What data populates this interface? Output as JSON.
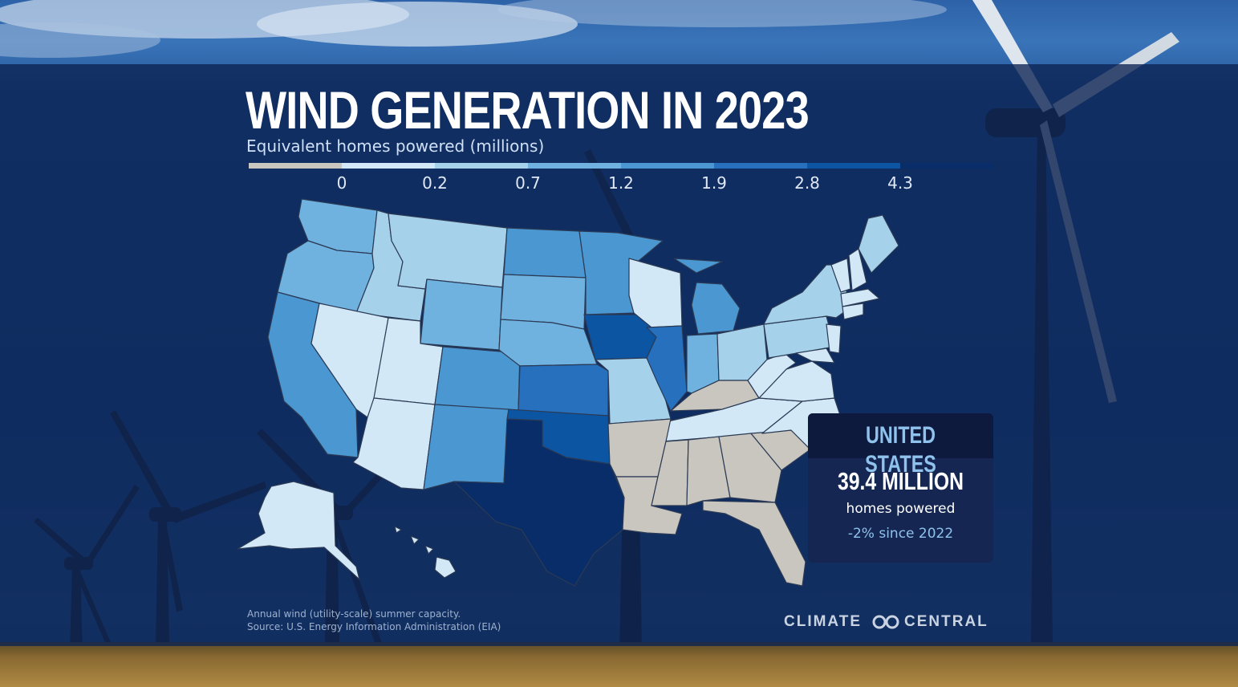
{
  "title": "WIND GENERATION IN 2023",
  "subtitle": "Equivalent homes powered (millions)",
  "legend": {
    "ticks": [
      "0",
      "0.2",
      "0.7",
      "1.2",
      "1.9",
      "2.8",
      "4.3"
    ],
    "bins": [
      {
        "color": "#c9c5bf"
      },
      {
        "color": "#d3e8f6"
      },
      {
        "color": "#a6d1ea"
      },
      {
        "color": "#6fb2e0"
      },
      {
        "color": "#4a97d1"
      },
      {
        "color": "#2670bd"
      },
      {
        "color": "#0b55a3"
      },
      {
        "color": "#082d68"
      }
    ]
  },
  "info": {
    "label": "UNITED STATES",
    "value": "39.4 MILLION",
    "description": "homes powered",
    "change": "-2% since 2022"
  },
  "notes": {
    "line1": "Annual wind (utility-scale) summer capacity.",
    "line2": "Source: U.S. Energy Information Administration (EIA)"
  },
  "logo": {
    "left": "CLIMATE",
    "right": "CENTRAL"
  },
  "colors": {
    "panel": "#0c2252",
    "accent": "#8fc2ec",
    "no_data": "#c9c5bf"
  }
}
